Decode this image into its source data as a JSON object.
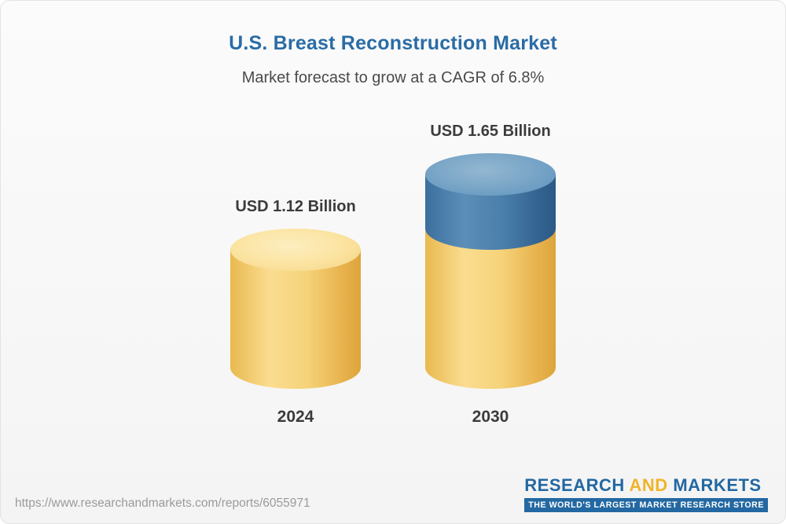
{
  "page": {
    "title": "U.S. Breast Reconstruction Market",
    "subtitle": "Market forecast to grow at a CAGR of 6.8%",
    "source_url": "https://www.researchandmarkets.com/reports/6055971"
  },
  "logo": {
    "part1": "RESEARCH",
    "part2": "AND",
    "part3": "MARKETS",
    "tagline": "THE WORLD'S LARGEST MARKET RESEARCH STORE"
  },
  "chart_data": {
    "type": "bar",
    "title": "U.S. Breast Reconstruction Market",
    "subtitle": "Market forecast to grow at a CAGR of 6.8%",
    "categories": [
      "2024",
      "2030"
    ],
    "values": [
      1.12,
      1.65
    ],
    "value_labels": [
      "USD 1.12 Billion",
      "USD 1.65 Billion"
    ],
    "unit": "USD Billion",
    "cagr_percent": 6.8,
    "ylim": [
      0,
      1.65
    ],
    "grid": false,
    "legend": "none",
    "colors": {
      "bar_base": "#f2cf71",
      "bar_growth_segment": "#3d76a6",
      "title": "#2a6ca5",
      "label_text": "#3b3b3b",
      "logo_blue": "#2368a2",
      "logo_gold": "#f0b429"
    }
  }
}
